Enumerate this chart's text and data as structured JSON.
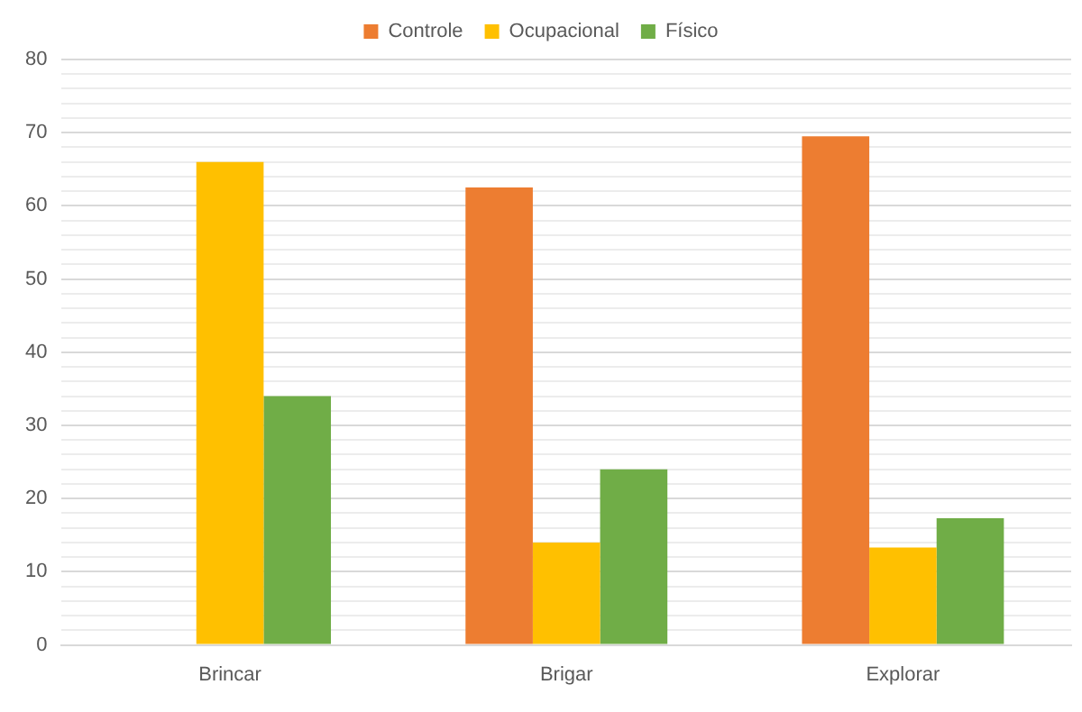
{
  "chart_data": {
    "type": "bar",
    "categories": [
      "Brincar",
      "Brigar",
      "Explorar"
    ],
    "series": [
      {
        "name": "Controle",
        "color": "#ed7d31",
        "values": [
          0,
          62.5,
          69.5
        ]
      },
      {
        "name": "Ocupacional",
        "color": "#ffc000",
        "values": [
          66,
          14,
          13.3
        ]
      },
      {
        "name": "Físico",
        "color": "#70ad47",
        "values": [
          34,
          24,
          17.3
        ]
      }
    ],
    "ylim": [
      0,
      80
    ],
    "yticks": [
      0,
      {
        "value": 2,
        "label": null
      },
      {
        "value": 4,
        "label": null
      },
      {
        "value": 6,
        "label": null
      },
      {
        "value": 8,
        "label": null
      },
      10,
      {
        "value": 12,
        "label": null
      },
      {
        "value": 14,
        "label": null
      },
      {
        "value": 16,
        "label": null
      },
      {
        "value": 18,
        "label": null
      },
      20,
      {
        "value": 22,
        "label": null
      },
      {
        "value": 24,
        "label": null
      },
      {
        "value": 26,
        "label": null
      },
      {
        "value": 28,
        "label": null
      },
      30,
      {
        "value": 32,
        "label": null
      },
      {
        "value": 34,
        "label": null
      },
      {
        "value": 36,
        "label": null
      },
      {
        "value": 38,
        "label": null
      },
      40,
      {
        "value": 42,
        "label": null
      },
      {
        "value": 44,
        "label": null
      },
      {
        "value": 46,
        "label": null
      },
      {
        "value": 48,
        "label": null
      },
      50,
      {
        "value": 52,
        "label": null
      },
      {
        "value": 54,
        "label": null
      },
      {
        "value": 56,
        "label": null
      },
      {
        "value": 58,
        "label": null
      },
      60,
      {
        "value": 62,
        "label": null
      },
      {
        "value": 64,
        "label": null
      },
      {
        "value": 66,
        "label": null
      },
      {
        "value": 68,
        "label": null
      },
      70,
      {
        "value": 72,
        "label": null
      },
      {
        "value": 74,
        "label": null
      },
      {
        "value": 76,
        "label": null
      },
      {
        "value": 78,
        "label": null
      },
      80
    ],
    "grid": "y",
    "legend": "top"
  }
}
